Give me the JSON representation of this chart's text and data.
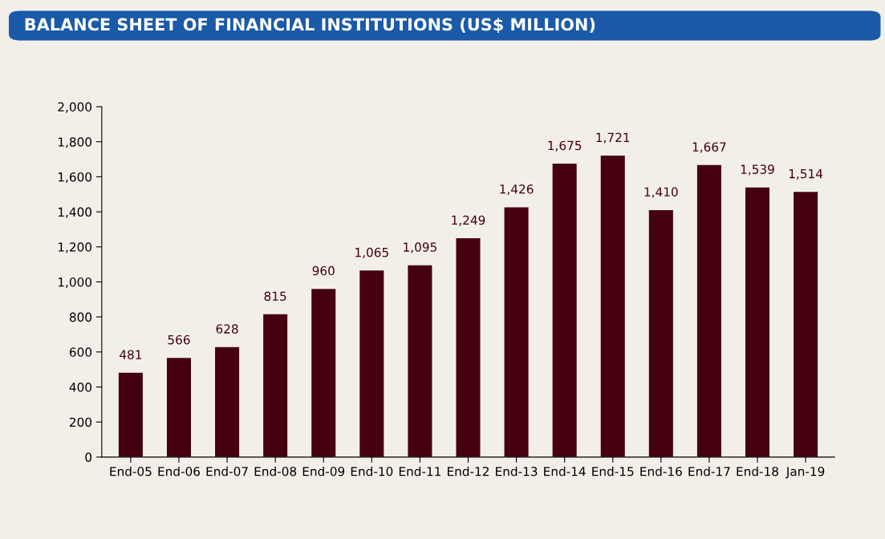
{
  "chart_data": {
    "type": "bar",
    "title": "BALANCE SHEET OF FINANCIAL INSTITUTIONS (US$ MILLION)",
    "categories": [
      "End-05",
      "End-06",
      "End-07",
      "End-08",
      "End-09",
      "End-10",
      "End-11",
      "End-12",
      "End-13",
      "End-14",
      "End-15",
      "End-16",
      "End-17",
      "End-18",
      "Jan-19"
    ],
    "values": [
      481,
      566,
      628,
      815,
      960,
      1065,
      1095,
      1249,
      1426,
      1675,
      1721,
      1410,
      1667,
      1539,
      1514
    ],
    "color": "#45000f",
    "value_labels": [
      "481",
      "566",
      "628",
      "815",
      "960",
      "1,065",
      "1,095",
      "1,249",
      "1,426",
      "1,675",
      "1,721",
      "1,410",
      "1,667",
      "1,539",
      "1,514"
    ],
    "grid": false,
    "legend": false,
    "ylim": [
      0,
      2000
    ],
    "yticks": [
      0,
      200,
      400,
      600,
      800,
      {
        "value": 1000,
        "label": "1,000"
      },
      {
        "value": 1200,
        "label": "1,200"
      },
      {
        "value": 1400,
        "label": "1,400"
      },
      {
        "value": 1600,
        "label": "1,600"
      },
      {
        "value": 1800,
        "label": "1,800"
      },
      {
        "value": 2000,
        "label": "2,000"
      }
    ]
  }
}
